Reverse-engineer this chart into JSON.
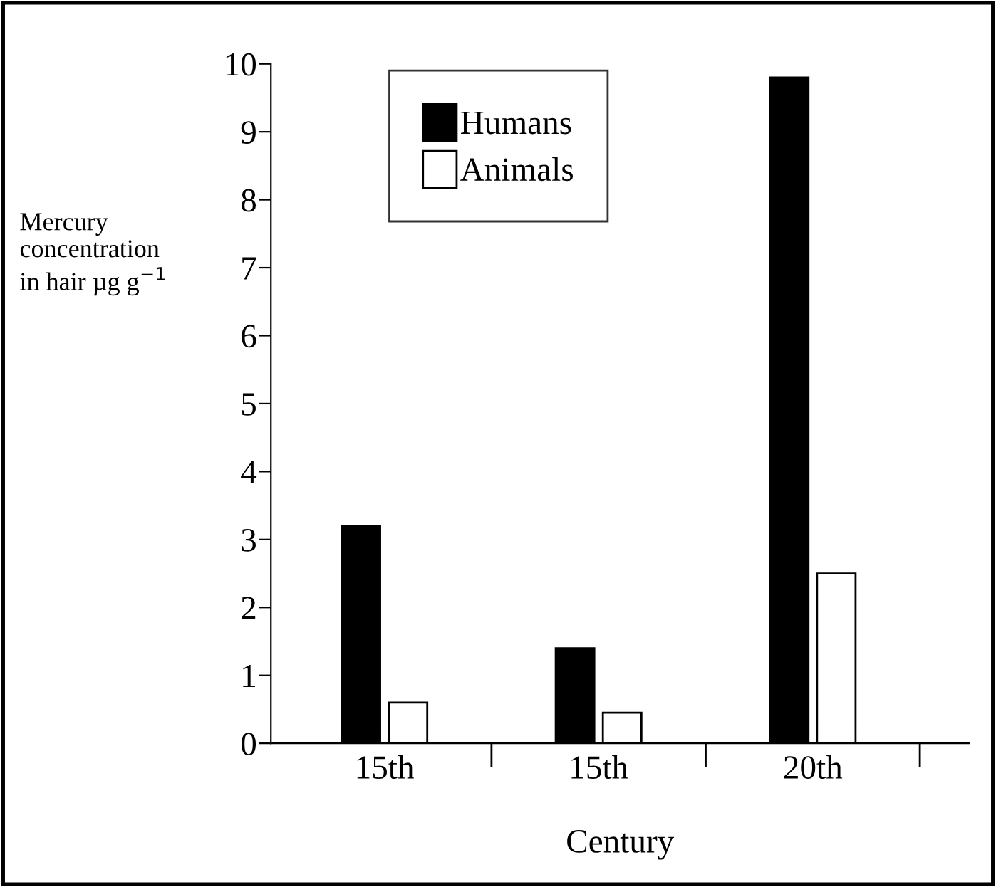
{
  "chart_data": {
    "type": "bar",
    "xlabel": "Century",
    "ylabel": "Mercury\nconcentration\nin hair µg g$^{−1}$",
    "categories": [
      "15th",
      "15th",
      "20th"
    ],
    "series": [
      {
        "name": "Humans",
        "color": "#000000",
        "values": [
          3.2,
          1.4,
          9.8
        ]
      },
      {
        "name": "Animals",
        "color": "#ffffff",
        "values": [
          0.6,
          0.45,
          2.5
        ]
      }
    ],
    "ylim": [
      0,
      10
    ],
    "yticks": [
      0,
      1,
      2,
      3,
      4,
      5,
      6,
      7,
      8,
      9,
      10
    ],
    "grid": false,
    "legend": "top left"
  }
}
